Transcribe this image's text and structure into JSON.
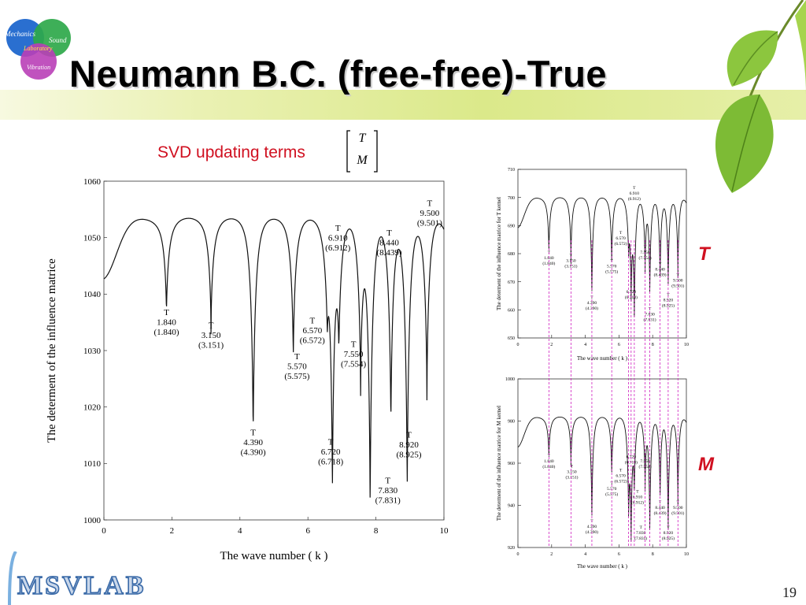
{
  "slide": {
    "title": "Neumann B.C. (free-free)-True",
    "subtitle": "SVD updating terms",
    "matrix_terms": [
      "T",
      "M"
    ],
    "logo_words": [
      "Mechanics",
      "Sound",
      "Laboratory",
      "Vibration"
    ],
    "footer_logo": "MSVLAB",
    "page_number": "19",
    "label_t": "T",
    "label_m": "M",
    "accent_color": "#d01020",
    "guide_color": "#d020c0"
  },
  "chart_data": [
    {
      "type": "line",
      "name": "main",
      "xlabel": "The wave number ( k )",
      "ylabel": "The determent of the influence matrice",
      "xlim": [
        0,
        10
      ],
      "ylim": [
        1000,
        1060
      ],
      "xticks": [
        0,
        2,
        4,
        6,
        8,
        10
      ],
      "yticks": [
        1000,
        1010,
        1020,
        1030,
        1040,
        1050,
        1060
      ],
      "baseline": 1053.5,
      "series": [
        {
          "dips": [
            {
              "k": 1.84,
              "depth": 1038.5
            },
            {
              "k": 3.15,
              "depth": 1036.5
            },
            {
              "k": 4.39,
              "depth": 1016.5
            },
            {
              "k": 5.57,
              "depth": 1030.5
            },
            {
              "k": 6.57,
              "depth": 1042
            },
            {
              "k": 6.72,
              "depth": 1010
            },
            {
              "k": 6.91,
              "depth": 1037
            },
            {
              "k": 7.55,
              "depth": 1028
            },
            {
              "k": 7.83,
              "depth": 1005
            },
            {
              "k": 8.44,
              "depth": 1019
            },
            {
              "k": 8.92,
              "depth": 1007
            },
            {
              "k": 9.5,
              "depth": 1025
            }
          ]
        }
      ],
      "annotations": [
        {
          "label": "T",
          "value": "1.840",
          "exact": "(1.840)",
          "k": 1.84,
          "y": 1036.3
        },
        {
          "label": "T",
          "value": "3.150",
          "exact": "(3.151)",
          "k": 3.15,
          "y": 1034
        },
        {
          "label": "T",
          "value": "4.390",
          "exact": "(4.390)",
          "k": 4.39,
          "y": 1015
        },
        {
          "label": "T",
          "value": "5.570",
          "exact": "(5.575)",
          "k": 5.68,
          "y": 1028.5
        },
        {
          "label": "T",
          "value": "6.570",
          "exact": "(6.572)",
          "k": 6.13,
          "y": 1034.8
        },
        {
          "label": "T",
          "value": "6.720",
          "exact": "(6.718)",
          "k": 6.67,
          "y": 1013.3
        },
        {
          "label": "T",
          "value": "6.910",
          "exact": "(6.912)",
          "k": 6.88,
          "y": 1051.2
        },
        {
          "label": "T",
          "value": "7.550",
          "exact": "(7.554)",
          "k": 7.34,
          "y": 1030.6
        },
        {
          "label": "T",
          "value": "7.830",
          "exact": "(7.831)",
          "k": 8.35,
          "y": 1006.5
        },
        {
          "label": "T",
          "value": "8.440",
          "exact": "(8.439)",
          "k": 8.39,
          "y": 1050.4
        },
        {
          "label": "T",
          "value": "8.920",
          "exact": "(8.925)",
          "k": 8.97,
          "y": 1014.6
        },
        {
          "label": "T",
          "value": "9.500",
          "exact": "(9.501)",
          "k": 9.58,
          "y": 1055.6
        }
      ]
    },
    {
      "type": "line",
      "name": "t-kernel",
      "xlabel": "The wave number ( k )",
      "ylabel": "The determent of the influence matrice for T kernel",
      "xlim": [
        0,
        10
      ],
      "ylim": [
        650,
        710
      ],
      "xticks": [
        0,
        2,
        4,
        6,
        8,
        10
      ],
      "yticks": [
        650,
        660,
        670,
        680,
        690,
        700,
        710
      ],
      "baseline": 700,
      "series": [
        {
          "dips": [
            {
              "k": 1.84,
              "depth": 682
            },
            {
              "k": 3.15,
              "depth": 680
            },
            {
              "k": 4.39,
              "depth": 666
            },
            {
              "k": 5.57,
              "depth": 678
            },
            {
              "k": 6.57,
              "depth": 686
            },
            {
              "k": 6.72,
              "depth": 670
            },
            {
              "k": 6.91,
              "depth": 660
            },
            {
              "k": 7.55,
              "depth": 678
            },
            {
              "k": 7.83,
              "depth": 668
            },
            {
              "k": 8.44,
              "depth": 672
            },
            {
              "k": 8.92,
              "depth": 670
            },
            {
              "k": 9.5,
              "depth": 675
            }
          ]
        }
      ],
      "annotations": [
        {
          "label": "T",
          "value": "1.840",
          "exact": "(1.840)",
          "k": 1.84,
          "y": 680
        },
        {
          "label": "T",
          "value": "3.150",
          "exact": "(3.151)",
          "k": 3.15,
          "y": 679
        },
        {
          "label": "T",
          "value": "4.390",
          "exact": "(4.390)",
          "k": 4.39,
          "y": 664
        },
        {
          "label": "T",
          "value": "5.570",
          "exact": "(5.575)",
          "k": 5.57,
          "y": 677
        },
        {
          "label": "T",
          "value": "6.570",
          "exact": "(6.572)",
          "k": 6.1,
          "y": 687
        },
        {
          "label": "T",
          "value": "6.720",
          "exact": "(6.718)",
          "k": 6.72,
          "y": 668
        },
        {
          "label": "T",
          "value": "6.910",
          "exact": "(6.912)",
          "k": 6.91,
          "y": 703
        },
        {
          "label": "T",
          "value": "7.550",
          "exact": "(7.554)",
          "k": 7.55,
          "y": 682
        },
        {
          "label": "T",
          "value": "7.830",
          "exact": "(7.831)",
          "k": 7.83,
          "y": 660
        },
        {
          "label": "T",
          "value": "8.440",
          "exact": "(8.439)",
          "k": 8.44,
          "y": 676
        },
        {
          "label": "T",
          "value": "8.920",
          "exact": "(8.925)",
          "k": 8.92,
          "y": 665
        },
        {
          "label": "T",
          "value": "9.500",
          "exact": "(9.501)",
          "k": 9.5,
          "y": 672
        }
      ]
    },
    {
      "type": "line",
      "name": "m-kernel",
      "xlabel": "The wave number ( k )",
      "ylabel": "The determent of the influence matrice for M kernel",
      "xlim": [
        0,
        10
      ],
      "ylim": [
        920,
        1000
      ],
      "xticks": [
        0,
        2,
        4,
        6,
        8,
        10
      ],
      "yticks": [
        920,
        940,
        960,
        980,
        1000
      ],
      "baseline": 982,
      "series": [
        {
          "dips": [
            {
              "k": 1.84,
              "depth": 965
            },
            {
              "k": 3.15,
              "depth": 963
            },
            {
              "k": 4.39,
              "depth": 934
            },
            {
              "k": 5.57,
              "depth": 957
            },
            {
              "k": 6.57,
              "depth": 944
            },
            {
              "k": 6.72,
              "depth": 932
            },
            {
              "k": 6.91,
              "depth": 954
            },
            {
              "k": 7.55,
              "depth": 954
            },
            {
              "k": 7.83,
              "depth": 930
            },
            {
              "k": 8.44,
              "depth": 945
            },
            {
              "k": 8.92,
              "depth": 929
            },
            {
              "k": 9.5,
              "depth": 945
            }
          ]
        }
      ],
      "annotations": [
        {
          "label": "T",
          "value": "1.840",
          "exact": "(1.840)",
          "k": 1.84,
          "y": 963
        },
        {
          "label": "T",
          "value": "3.150",
          "exact": "(3.151)",
          "k": 3.2,
          "y": 958
        },
        {
          "label": "T",
          "value": "4.390",
          "exact": "(4.390)",
          "k": 4.39,
          "y": 932
        },
        {
          "label": "T",
          "value": "5.570",
          "exact": "(5.575)",
          "k": 5.57,
          "y": 950
        },
        {
          "label": "T",
          "value": "6.570",
          "exact": "(6.572)",
          "k": 6.1,
          "y": 956
        },
        {
          "label": "T",
          "value": "6.720",
          "exact": "(6.718)",
          "k": 6.72,
          "y": 965
        },
        {
          "label": "T",
          "value": "6.910",
          "exact": "(6.912)",
          "k": 7.1,
          "y": 946
        },
        {
          "label": "T",
          "value": "7.550",
          "exact": "(7.554)",
          "k": 7.55,
          "y": 963
        },
        {
          "label": "T",
          "value": "7.830",
          "exact": "(7.831)",
          "k": 7.3,
          "y": 929
        },
        {
          "label": "T",
          "value": "8.440",
          "exact": "(8.439)",
          "k": 8.44,
          "y": 941
        },
        {
          "label": "T",
          "value": "8.920",
          "exact": "(8.925)",
          "k": 8.92,
          "y": 929
        },
        {
          "label": "T",
          "value": "9.500",
          "exact": "(9.501)",
          "k": 9.5,
          "y": 941
        }
      ]
    }
  ]
}
